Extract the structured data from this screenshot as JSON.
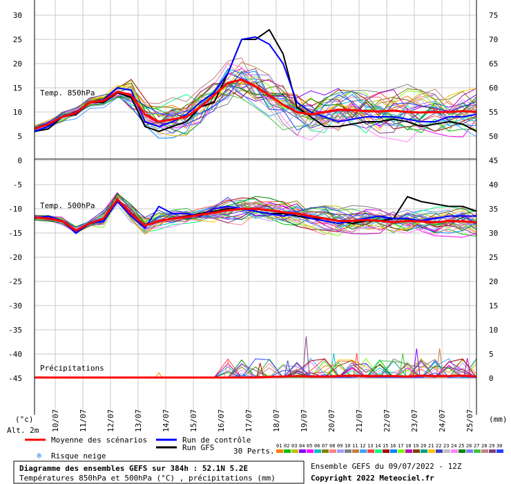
{
  "chart_data": {
    "type": "line",
    "x_dates": [
      "10/07",
      "11/07",
      "12/07",
      "13/07",
      "14/07",
      "15/07",
      "16/07",
      "17/07",
      "18/07",
      "19/07",
      "20/07",
      "21/07",
      "22/07",
      "23/07",
      "24/07",
      "25/07"
    ],
    "x_hours_range": [
      0,
      384
    ],
    "left_axis": {
      "ticks": [
        30,
        25,
        20,
        15,
        10,
        5,
        0,
        -5,
        -10,
        -15,
        -20,
        -25,
        -30,
        -35,
        -40,
        -45
      ],
      "unit": "(°c)"
    },
    "right_axis": {
      "ticks": [
        75,
        70,
        65,
        60,
        55,
        50,
        45,
        40,
        35,
        30,
        25,
        20,
        15,
        10,
        5,
        0
      ],
      "unit": "(mm)"
    },
    "panels": {
      "t850": {
        "label": "Temp. 850hPa",
        "ylim": [
          0,
          30
        ],
        "mean": {
          "x": [
            0,
            12,
            24,
            36,
            48,
            60,
            72,
            84,
            96,
            108,
            120,
            132,
            144,
            156,
            168,
            180,
            192,
            204,
            216,
            228,
            240,
            252,
            264,
            276,
            288,
            300,
            312,
            324,
            336,
            348,
            360,
            372,
            384
          ],
          "y": [
            6.5,
            7.5,
            9,
            9.8,
            12,
            12.3,
            14.2,
            13.5,
            9.5,
            8,
            8.5,
            9,
            11,
            13.5,
            16,
            16.7,
            15.3,
            13.5,
            11.5,
            10,
            9.5,
            10,
            10.5,
            10.4,
            10.2,
            10.1,
            10.3,
            10,
            9.9,
            10,
            10,
            10.2,
            10
          ]
        },
        "control": {
          "x": [
            0,
            12,
            24,
            36,
            48,
            60,
            72,
            84,
            96,
            108,
            120,
            132,
            144,
            156,
            168,
            180,
            192,
            204,
            216,
            228,
            240,
            252,
            264,
            276,
            288,
            300,
            312,
            324,
            336,
            348,
            360,
            372,
            384
          ],
          "y": [
            6,
            7,
            9,
            10,
            12,
            12.5,
            15,
            14.5,
            8,
            7,
            8,
            9.5,
            12,
            14,
            18,
            25,
            25.5,
            24,
            20,
            12,
            10,
            9,
            8,
            8.5,
            9,
            9,
            9,
            8.5,
            8,
            8,
            9,
            9,
            9.5
          ]
        },
        "gfs": {
          "x": [
            0,
            12,
            24,
            36,
            48,
            60,
            72,
            84,
            96,
            108,
            120,
            132,
            144,
            156,
            168,
            180,
            192,
            204,
            216,
            228,
            240,
            252,
            264,
            276,
            288,
            300,
            312,
            324,
            336,
            348,
            360,
            372,
            384
          ],
          "y": [
            6,
            6.5,
            9,
            9.5,
            12,
            12,
            14,
            13,
            7,
            6,
            7,
            8,
            11,
            12,
            18,
            25,
            25,
            27,
            22,
            11,
            9,
            7,
            7,
            7.5,
            8,
            8,
            8.5,
            8,
            7,
            7.5,
            8,
            7.5,
            6
          ]
        }
      },
      "t500": {
        "label": "Temp. 500hPa",
        "ylim": [
          -20,
          -5
        ],
        "mean": {
          "x": [
            0,
            12,
            24,
            36,
            48,
            60,
            72,
            84,
            96,
            108,
            120,
            132,
            144,
            156,
            168,
            180,
            192,
            204,
            216,
            228,
            240,
            252,
            264,
            276,
            288,
            300,
            312,
            324,
            336,
            348,
            360,
            372,
            384
          ],
          "y": [
            -11.8,
            -12,
            -12.5,
            -14.5,
            -13,
            -12,
            -8,
            -11,
            -13.5,
            -12.5,
            -12,
            -11.7,
            -11.2,
            -10.8,
            -10.3,
            -10,
            -10,
            -10.3,
            -10.7,
            -11,
            -11.5,
            -12,
            -12.5,
            -12.5,
            -12.3,
            -12.5,
            -12.8,
            -12.5,
            -12.6,
            -12.8,
            -12.5,
            -12.6,
            -12.8
          ]
        },
        "control": {
          "x": [
            0,
            12,
            24,
            36,
            48,
            60,
            72,
            84,
            96,
            108,
            120,
            132,
            144,
            156,
            168,
            180,
            192,
            204,
            216,
            228,
            240,
            252,
            264,
            276,
            288,
            300,
            312,
            324,
            336,
            348,
            360,
            372,
            384
          ],
          "y": [
            -12,
            -11.5,
            -12.5,
            -15,
            -13,
            -12.5,
            -8.5,
            -11.5,
            -14,
            -9.5,
            -11,
            -11,
            -11.5,
            -10,
            -9.5,
            -10,
            -10.5,
            -11,
            -11.5,
            -11,
            -12,
            -12.5,
            -13,
            -12.5,
            -12,
            -11.5,
            -12,
            -12,
            -12.5,
            -12,
            -11.5,
            -11.5,
            -11.5
          ]
        },
        "gfs": {
          "x": [
            0,
            12,
            24,
            36,
            48,
            60,
            72,
            84,
            96,
            108,
            120,
            132,
            144,
            156,
            168,
            180,
            192,
            204,
            216,
            228,
            240,
            252,
            264,
            276,
            288,
            300,
            312,
            324,
            336,
            348,
            360,
            372,
            384
          ],
          "y": [
            -12,
            -11.5,
            -12.5,
            -14.5,
            -13,
            -12,
            -8,
            -11,
            -13.5,
            -12.5,
            -12,
            -11.5,
            -11,
            -10.5,
            -10,
            -10,
            -10.5,
            -11,
            -11,
            -11.5,
            -12,
            -12,
            -12.5,
            -13,
            -12.5,
            -12.5,
            -12,
            -7.5,
            -8.5,
            -9,
            -9.5,
            -9.5,
            -10.5
          ]
        }
      },
      "precip": {
        "label": "Précipitations",
        "ylim": [
          0,
          15
        ],
        "mean": {
          "x": [
            0,
            12,
            24,
            36,
            48,
            60,
            72,
            84,
            96,
            108,
            120,
            132,
            144,
            156,
            168,
            180,
            192,
            204,
            216,
            228,
            240,
            252,
            264,
            276,
            288,
            300,
            312,
            324,
            336,
            348,
            360,
            372,
            384
          ],
          "y": [
            0,
            0,
            0,
            0,
            0,
            0,
            0,
            0,
            0,
            0,
            0,
            0,
            0,
            0,
            0,
            0,
            0,
            0.1,
            0.2,
            0.3,
            0.2,
            0.2,
            0.3,
            0.4,
            0.3,
            0.3,
            0.3,
            0.2,
            0.4,
            0.3,
            0.3,
            0.4,
            0.2
          ]
        },
        "peaks": {
          "x": [
            108,
            168,
            196,
            220,
            236,
            260,
            280,
            304,
            320,
            332,
            352,
            376
          ],
          "y": [
            1,
            3.5,
            3,
            3.5,
            8.5,
            5,
            5,
            2,
            5,
            6,
            6,
            4
          ]
        }
      }
    },
    "n_members": 30,
    "member_colors": [
      "#ff7f00",
      "#00c000",
      "#c0c000",
      "#8000ff",
      "#ff00ff",
      "#00c0c0",
      "#808000",
      "#ff8080",
      "#a0a0ff",
      "#808080",
      "#c08040",
      "#40a0ff",
      "#ff4040",
      "#00ff80",
      "#a00000",
      "#0080ff",
      "#80ff00",
      "#c000c0",
      "#804000",
      "#00a080",
      "#ffc000",
      "#4040c0",
      "#c0c0c0",
      "#ff80ff",
      "#008000",
      "#8080ff",
      "#40c040",
      "#c08080",
      "#804080",
      "#2040ff"
    ],
    "member_codes": [
      "01",
      "02",
      "03",
      "04",
      "05",
      "06",
      "07",
      "08",
      "09",
      "10",
      "11",
      "12",
      "13",
      "14",
      "15",
      "16",
      "17",
      "18",
      "19",
      "20",
      "21",
      "22",
      "23",
      "24",
      "25",
      "26",
      "27",
      "28",
      "29",
      "30"
    ]
  },
  "axis_left_label": "(°c)",
  "axis_right_label": "(mm)",
  "alt_label": "Alt. 2m",
  "legend": {
    "mean": "Moyenne des scénarios",
    "control": "Run de contrôle",
    "gfs": "Run GFS",
    "perts": "30 Perts.",
    "snow": "Risque neige",
    "colors": {
      "mean": "#ff0000",
      "control": "#0000ff",
      "gfs": "#000000"
    }
  },
  "footer": {
    "title": "Diagramme des ensembles GEFS sur 384h : 52.1N 5.2E",
    "subtitle": "Températures 850hPa et 500hPa (°C) , précipitations (mm)",
    "run": "Ensemble GEFS du 09/07/2022 - 12Z",
    "copyright": "Copyright 2022 Meteociel.fr"
  }
}
